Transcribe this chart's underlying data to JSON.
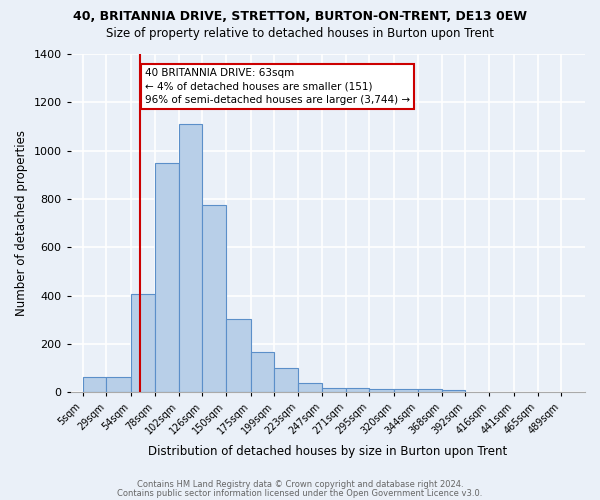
{
  "title": "40, BRITANNIA DRIVE, STRETTON, BURTON-ON-TRENT, DE13 0EW",
  "subtitle": "Size of property relative to detached houses in Burton upon Trent",
  "xlabel": "Distribution of detached houses by size in Burton upon Trent",
  "ylabel": "Number of detached properties",
  "bin_labels": [
    "5sqm",
    "29sqm",
    "54sqm",
    "78sqm",
    "102sqm",
    "126sqm",
    "150sqm",
    "175sqm",
    "199sqm",
    "223sqm",
    "247sqm",
    "271sqm",
    "295sqm",
    "320sqm",
    "344sqm",
    "368sqm",
    "392sqm",
    "416sqm",
    "441sqm",
    "465sqm",
    "489sqm"
  ],
  "bin_edges": [
    5,
    29,
    54,
    78,
    102,
    126,
    150,
    175,
    199,
    223,
    247,
    271,
    295,
    320,
    344,
    368,
    392,
    416,
    441,
    465,
    489,
    513
  ],
  "bar_values": [
    65,
    65,
    405,
    950,
    1110,
    775,
    305,
    165,
    100,
    37,
    18,
    18,
    15,
    12,
    15,
    10,
    0,
    0,
    0,
    0,
    0
  ],
  "bar_color": "#b8cfe8",
  "bar_edge_color": "#5b8fc9",
  "red_line_value": 63,
  "annotation_text": "40 BRITANNIA DRIVE: 63sqm\n← 4% of detached houses are smaller (151)\n96% of semi-detached houses are larger (3,744) →",
  "annotation_box_color": "white",
  "annotation_box_edge_color": "#cc0000",
  "red_line_color": "#cc0000",
  "ylim": [
    0,
    1400
  ],
  "yticks": [
    0,
    200,
    400,
    600,
    800,
    1000,
    1200,
    1400
  ],
  "bg_color": "#eaf0f8",
  "grid_color": "white",
  "footer1": "Contains HM Land Registry data © Crown copyright and database right 2024.",
  "footer2": "Contains public sector information licensed under the Open Government Licence v3.0."
}
